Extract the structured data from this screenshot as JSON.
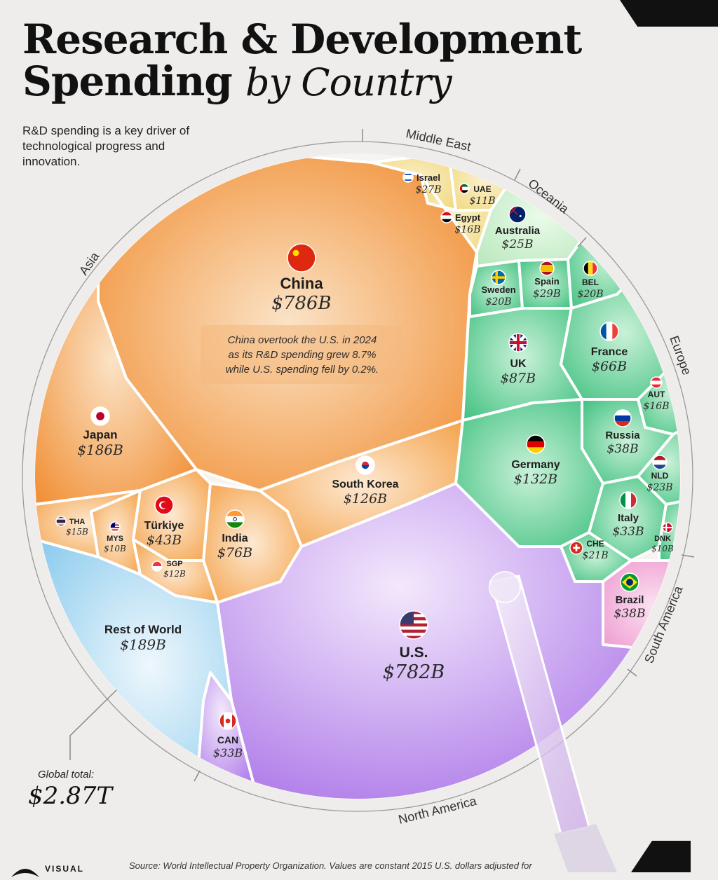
{
  "header": {
    "title_line1": "Research & Development",
    "title_line2_bold": "Spending",
    "title_line2_italic": "by Country",
    "subtitle": "R&D spending is a key driver of technological progress and innovation."
  },
  "footer": {
    "global_label": "Global total:",
    "global_value": "$2.87T",
    "source": "Source: World Intellectual Property Organization. Values are constant 2015 U.S. dollars adjusted for",
    "brand": "VISUAL"
  },
  "annotation": {
    "lines": [
      "China overtook the U.S. in 2024",
      "as its R&D spending grew 8.7%",
      "while U.S. spending fell by 0.2%."
    ]
  },
  "chart_data": {
    "type": "voronoi-treemap",
    "title": "Research & Development Spending by Country",
    "unit": "USD billions (constant 2015)",
    "total": "$2.87T",
    "regions": [
      {
        "name": "Asia",
        "color": "#f09a3e"
      },
      {
        "name": "Middle East",
        "color": "#f3dc8c"
      },
      {
        "name": "Oceania",
        "color": "#bfeac2"
      },
      {
        "name": "Europe",
        "color": "#55c98c"
      },
      {
        "name": "South America",
        "color": "#f0a8d6"
      },
      {
        "name": "North America",
        "color": "#b986ec"
      },
      {
        "name": "Rest of World",
        "color": "#a6d6f0"
      }
    ],
    "cells": [
      {
        "name": "China",
        "value_label": "$786B",
        "value": 786,
        "region": "Asia",
        "flag": "china-flag-icon"
      },
      {
        "name": "U.S.",
        "value_label": "$782B",
        "value": 782,
        "region": "North America",
        "flag": "us-flag-icon"
      },
      {
        "name": "Rest of World",
        "value_label": "$189B",
        "value": 189,
        "region": "Rest of World",
        "flag": ""
      },
      {
        "name": "Japan",
        "value_label": "$186B",
        "value": 186,
        "region": "Asia",
        "flag": "japan-flag-icon"
      },
      {
        "name": "Germany",
        "value_label": "$132B",
        "value": 132,
        "region": "Europe",
        "flag": "germany-flag-icon"
      },
      {
        "name": "South Korea",
        "value_label": "$126B",
        "value": 126,
        "region": "Asia",
        "flag": "south-korea-flag-icon"
      },
      {
        "name": "UK",
        "value_label": "$87B",
        "value": 87,
        "region": "Europe",
        "flag": "uk-flag-icon"
      },
      {
        "name": "India",
        "value_label": "$76B",
        "value": 76,
        "region": "Asia",
        "flag": "india-flag-icon"
      },
      {
        "name": "France",
        "value_label": "$66B",
        "value": 66,
        "region": "Europe",
        "flag": "france-flag-icon"
      },
      {
        "name": "Türkiye",
        "value_label": "$43B",
        "value": 43,
        "region": "Asia",
        "flag": "turkiye-flag-icon"
      },
      {
        "name": "Russia",
        "value_label": "$38B",
        "value": 38,
        "region": "Europe",
        "flag": "russia-flag-icon"
      },
      {
        "name": "Brazil",
        "value_label": "$38B",
        "value": 38,
        "region": "South America",
        "flag": "brazil-flag-icon"
      },
      {
        "name": "Italy",
        "value_label": "$33B",
        "value": 33,
        "region": "Europe",
        "flag": "italy-flag-icon"
      },
      {
        "name": "CAN",
        "value_label": "$33B",
        "value": 33,
        "region": "North America",
        "flag": "canada-flag-icon"
      },
      {
        "name": "Spain",
        "value_label": "$29B",
        "value": 29,
        "region": "Europe",
        "flag": "spain-flag-icon"
      },
      {
        "name": "Israel",
        "value_label": "$27B",
        "value": 27,
        "region": "Middle East",
        "flag": "israel-flag-icon"
      },
      {
        "name": "Australia",
        "value_label": "$25B",
        "value": 25,
        "region": "Oceania",
        "flag": "australia-flag-icon"
      },
      {
        "name": "NLD",
        "value_label": "$23B",
        "value": 23,
        "region": "Europe",
        "flag": "netherlands-flag-icon"
      },
      {
        "name": "CHE",
        "value_label": "$21B",
        "value": 21,
        "region": "Europe",
        "flag": "switzerland-flag-icon"
      },
      {
        "name": "Sweden",
        "value_label": "$20B",
        "value": 20,
        "region": "Europe",
        "flag": "sweden-flag-icon"
      },
      {
        "name": "BEL",
        "value_label": "$20B",
        "value": 20,
        "region": "Europe",
        "flag": "belgium-flag-icon"
      },
      {
        "name": "AUT",
        "value_label": "$16B",
        "value": 16,
        "region": "Europe",
        "flag": "austria-flag-icon"
      },
      {
        "name": "Egypt",
        "value_label": "$16B",
        "value": 16,
        "region": "Middle East",
        "flag": "egypt-flag-icon"
      },
      {
        "name": "THA",
        "value_label": "$15B",
        "value": 15,
        "region": "Asia",
        "flag": "thailand-flag-icon"
      },
      {
        "name": "SGP",
        "value_label": "$12B",
        "value": 12,
        "region": "Asia",
        "flag": "singapore-flag-icon"
      },
      {
        "name": "UAE",
        "value_label": "$11B",
        "value": 11,
        "region": "Middle East",
        "flag": "uae-flag-icon"
      },
      {
        "name": "MYS",
        "value_label": "$10B",
        "value": 10,
        "region": "Asia",
        "flag": "malaysia-flag-icon"
      },
      {
        "name": "DNK",
        "value_label": "$10B",
        "value": 10,
        "region": "Europe",
        "flag": "denmark-flag-icon"
      }
    ]
  }
}
